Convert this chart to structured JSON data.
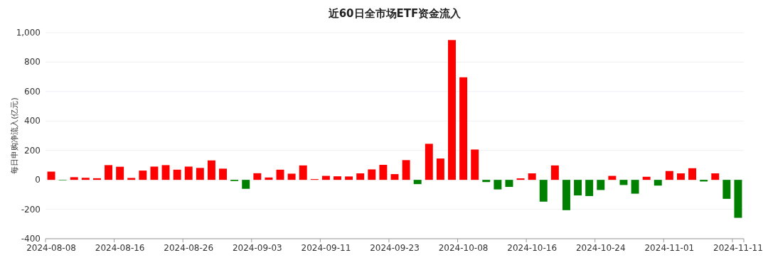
{
  "chart_data": {
    "type": "bar",
    "title": "近60日全市场ETF资金流入",
    "ylabel": "每日申购净流入(亿元)",
    "categories": [
      "2024-08-08",
      null,
      null,
      null,
      null,
      null,
      "2024-08-16",
      null,
      null,
      null,
      null,
      null,
      "2024-08-26",
      null,
      null,
      null,
      null,
      null,
      "2024-09-03",
      null,
      null,
      null,
      null,
      null,
      "2024-09-11",
      null,
      null,
      null,
      null,
      null,
      "2024-09-23",
      null,
      null,
      null,
      null,
      null,
      "2024-10-08",
      null,
      null,
      null,
      null,
      null,
      "2024-10-16",
      null,
      null,
      null,
      null,
      null,
      "2024-10-24",
      null,
      null,
      null,
      null,
      null,
      "2024-11-01",
      null,
      null,
      null,
      null,
      null,
      "2024-11-11"
    ],
    "values": [
      56,
      -3,
      18,
      14,
      11,
      100,
      89,
      13,
      63,
      90,
      100,
      69,
      90,
      81,
      132,
      76,
      -8,
      -61,
      45,
      16,
      69,
      42,
      98,
      5,
      27,
      24,
      23,
      44,
      71,
      102,
      39,
      134,
      -29,
      245,
      145,
      950,
      697,
      206,
      -15,
      -65,
      -48,
      10,
      44,
      -148,
      98,
      -206,
      -106,
      -110,
      -69,
      27,
      -35,
      -94,
      21,
      -39,
      60,
      44,
      79,
      -11,
      44,
      -129,
      -258
    ],
    "colors": [
      "#ff0000",
      "#008000",
      "#ff0000",
      "#ff0000",
      "#ff0000",
      "#ff0000",
      "#ff0000",
      "#ff0000",
      "#ff0000",
      "#ff0000",
      "#ff0000",
      "#ff0000",
      "#ff0000",
      "#ff0000",
      "#ff0000",
      "#ff0000",
      "#008000",
      "#008000",
      "#ff0000",
      "#ff0000",
      "#ff0000",
      "#ff0000",
      "#ff0000",
      "#ff0000",
      "#ff0000",
      "#ff0000",
      "#ff0000",
      "#ff0000",
      "#ff0000",
      "#ff0000",
      "#ff0000",
      "#ff0000",
      "#008000",
      "#ff0000",
      "#ff0000",
      "#ff0000",
      "#ff0000",
      "#ff0000",
      "#008000",
      "#008000",
      "#008000",
      "#ff0000",
      "#ff0000",
      "#008000",
      "#ff0000",
      "#008000",
      "#008000",
      "#008000",
      "#008000",
      "#ff0000",
      "#008000",
      "#008000",
      "#ff0000",
      "#008000",
      "#ff0000",
      "#ff0000",
      "#ff0000",
      "#008000",
      "#ff0000",
      "#008000",
      "#008000"
    ],
    "ylim": [
      -400,
      1000
    ],
    "yticks": [
      -400,
      -200,
      0,
      200,
      400,
      600,
      800,
      {
        "value": 1000,
        "label": "1,000"
      }
    ],
    "grid": "y"
  }
}
